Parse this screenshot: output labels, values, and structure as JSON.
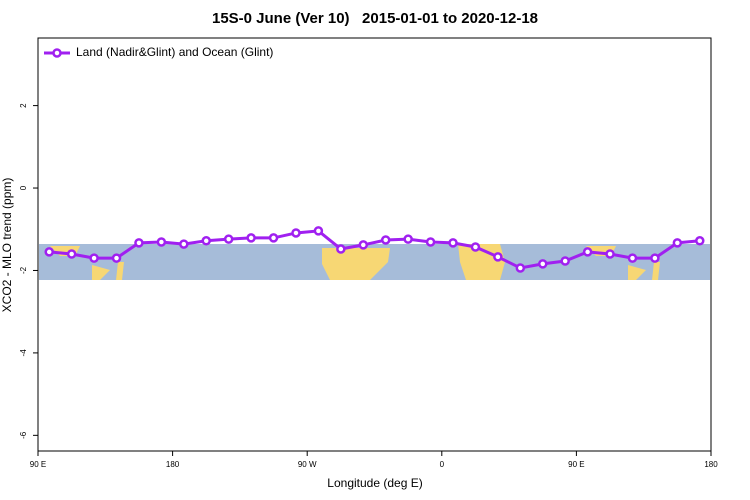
{
  "chart_data": {
    "type": "line",
    "title": "15S-0 June (Ver 10)   2015-01-01 to 2020-12-18",
    "xlabel": "Longitude (deg E)",
    "ylabel": "XCO2 - MLO trend (ppm)",
    "x": [
      97.5,
      112.5,
      127.5,
      142.5,
      157.5,
      172.5,
      187.5,
      202.5,
      217.5,
      232.5,
      247.5,
      262.5,
      277.5,
      292.5,
      307.5,
      322.5,
      337.5,
      352.5,
      367.5,
      382.5,
      397.5,
      412.5,
      427.5,
      442.5,
      457.5,
      472.5,
      487.5,
      502.5,
      517.5,
      532.5
    ],
    "series": [
      {
        "name": "Land (Nadir&Glint) and Ocean (Glint)",
        "color": "#a020f0",
        "values": [
          -1.55,
          -1.6,
          -1.7,
          -1.7,
          -1.33,
          -1.31,
          -1.36,
          -1.28,
          -1.24,
          -1.21,
          -1.21,
          -1.09,
          -1.04,
          -1.48,
          -1.38,
          -1.26,
          -1.24,
          -1.31,
          -1.33,
          -1.43,
          -1.67,
          -1.94,
          -1.84,
          -1.77,
          -1.55,
          -1.6,
          -1.7,
          -1.7,
          -1.33,
          -1.28
        ]
      }
    ],
    "xlim": [
      90,
      540
    ],
    "xticks": [
      {
        "value": 90,
        "label": "90 E"
      },
      180,
      {
        "value": 270,
        "label": "90 W"
      },
      {
        "value": 360,
        "label": "0"
      },
      {
        "value": 450,
        "label": "90 E"
      },
      {
        "value": 540,
        "label": "180"
      }
    ],
    "ylim": [
      -6.38,
      3.64
    ],
    "yticks": [
      2,
      0,
      -2,
      -4,
      -6
    ],
    "legend": "top-left"
  }
}
